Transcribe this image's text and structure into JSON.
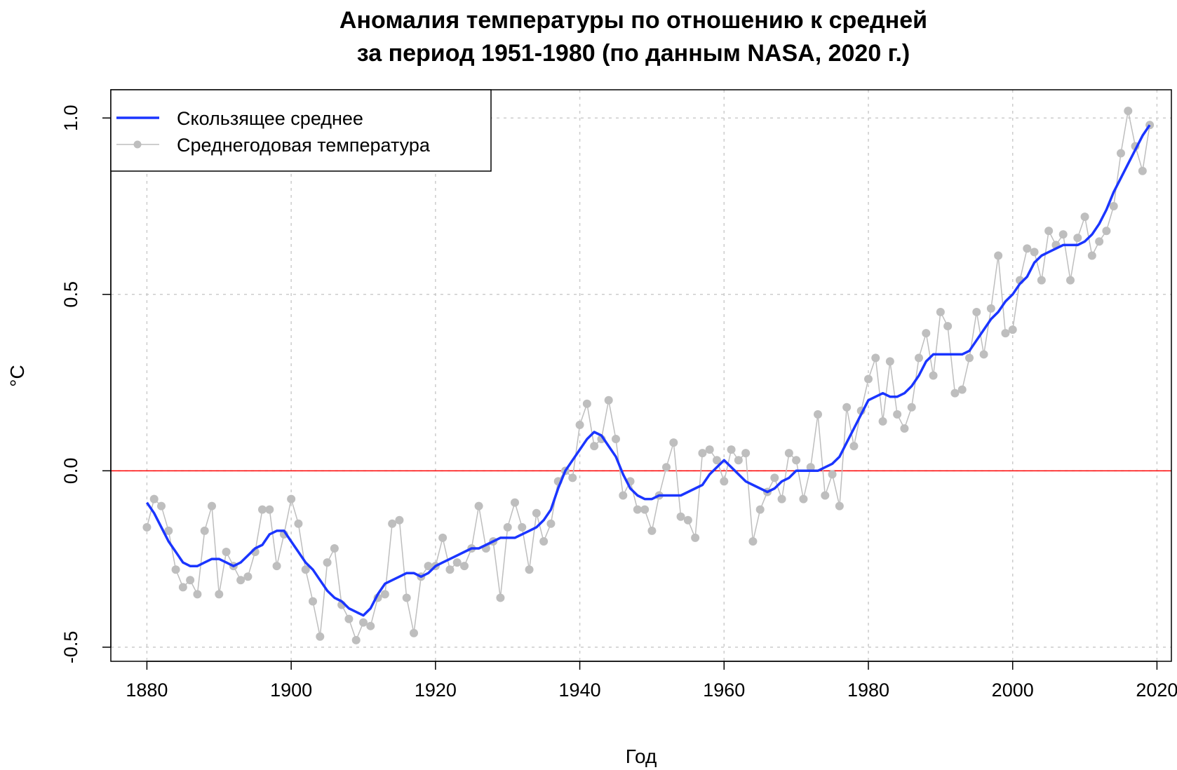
{
  "chart_data": {
    "type": "line",
    "title_line1": "Аномалия температуры по отношению к средней",
    "title_line2": "за период 1951-1980 (по данным NASA, 2020 г.)",
    "xlabel": "Год",
    "ylabel": "°C",
    "xlim": [
      1875,
      2022
    ],
    "ylim": [
      -0.54,
      1.08
    ],
    "xticks": [
      1880,
      1900,
      1920,
      1940,
      1960,
      1980,
      2000,
      2020
    ],
    "xtick_labels": [
      "1880",
      "1900",
      "1920",
      "1940",
      "1960",
      "1980",
      "2000",
      "2020"
    ],
    "yticks": [
      -0.5,
      0.0,
      0.5,
      1.0
    ],
    "ytick_labels": [
      "-0.5",
      "0.0",
      "0.5",
      "1.0"
    ],
    "grid": true,
    "reference_line": 0.0,
    "legend_position": "top-left",
    "legend": [
      {
        "label": "Скользящее среднее",
        "style": "line",
        "color": "#1a35ff"
      },
      {
        "label": "Среднегодовая температура",
        "style": "line-points",
        "color": "#bebebe"
      }
    ],
    "colors": {
      "moving_average": "#1a35ff",
      "annual": "#bebebe",
      "zero_line": "#ff0000",
      "grid": "#cccccc"
    },
    "series": [
      {
        "name": "Среднегодовая температура",
        "x": [
          1880,
          1881,
          1882,
          1883,
          1884,
          1885,
          1886,
          1887,
          1888,
          1889,
          1890,
          1891,
          1892,
          1893,
          1894,
          1895,
          1896,
          1897,
          1898,
          1899,
          1900,
          1901,
          1902,
          1903,
          1904,
          1905,
          1906,
          1907,
          1908,
          1909,
          1910,
          1911,
          1912,
          1913,
          1914,
          1915,
          1916,
          1917,
          1918,
          1919,
          1920,
          1921,
          1922,
          1923,
          1924,
          1925,
          1926,
          1927,
          1928,
          1929,
          1930,
          1931,
          1932,
          1933,
          1934,
          1935,
          1936,
          1937,
          1938,
          1939,
          1940,
          1941,
          1942,
          1943,
          1944,
          1945,
          1946,
          1947,
          1948,
          1949,
          1950,
          1951,
          1952,
          1953,
          1954,
          1955,
          1956,
          1957,
          1958,
          1959,
          1960,
          1961,
          1962,
          1963,
          1964,
          1965,
          1966,
          1967,
          1968,
          1969,
          1970,
          1971,
          1972,
          1973,
          1974,
          1975,
          1976,
          1977,
          1978,
          1979,
          1980,
          1981,
          1982,
          1983,
          1984,
          1985,
          1986,
          1987,
          1988,
          1989,
          1990,
          1991,
          1992,
          1993,
          1994,
          1995,
          1996,
          1997,
          1998,
          1999,
          2000,
          2001,
          2002,
          2003,
          2004,
          2005,
          2006,
          2007,
          2008,
          2009,
          2010,
          2011,
          2012,
          2013,
          2014,
          2015,
          2016,
          2017,
          2018,
          2019
        ],
        "y": [
          -0.16,
          -0.08,
          -0.1,
          -0.17,
          -0.28,
          -0.33,
          -0.31,
          -0.35,
          -0.17,
          -0.1,
          -0.35,
          -0.23,
          -0.27,
          -0.31,
          -0.3,
          -0.23,
          -0.11,
          -0.11,
          -0.27,
          -0.18,
          -0.08,
          -0.15,
          -0.28,
          -0.37,
          -0.47,
          -0.26,
          -0.22,
          -0.38,
          -0.42,
          -0.48,
          -0.43,
          -0.44,
          -0.36,
          -0.35,
          -0.15,
          -0.14,
          -0.36,
          -0.46,
          -0.3,
          -0.27,
          -0.27,
          -0.19,
          -0.28,
          -0.26,
          -0.27,
          -0.22,
          -0.1,
          -0.22,
          -0.2,
          -0.36,
          -0.16,
          -0.09,
          -0.16,
          -0.28,
          -0.12,
          -0.2,
          -0.15,
          -0.03,
          0.0,
          -0.02,
          0.13,
          0.19,
          0.07,
          0.09,
          0.2,
          0.09,
          -0.07,
          -0.03,
          -0.11,
          -0.11,
          -0.17,
          -0.07,
          0.01,
          0.08,
          -0.13,
          -0.14,
          -0.19,
          0.05,
          0.06,
          0.03,
          -0.03,
          0.06,
          0.03,
          0.05,
          -0.2,
          -0.11,
          -0.06,
          -0.02,
          -0.08,
          0.05,
          0.03,
          -0.08,
          0.01,
          0.16,
          -0.07,
          -0.01,
          -0.1,
          0.18,
          0.07,
          0.17,
          0.26,
          0.32,
          0.14,
          0.31,
          0.16,
          0.12,
          0.18,
          0.32,
          0.39,
          0.27,
          0.45,
          0.41,
          0.22,
          0.23,
          0.32,
          0.45,
          0.33,
          0.46,
          0.61,
          0.39,
          0.4,
          0.54,
          0.63,
          0.62,
          0.54,
          0.68,
          0.64,
          0.67,
          0.54,
          0.66,
          0.72,
          0.61,
          0.65,
          0.68,
          0.75,
          0.9,
          1.02,
          0.92,
          0.85,
          0.98
        ]
      },
      {
        "name": "Скользящее среднее",
        "x": [
          1880,
          1881,
          1882,
          1883,
          1884,
          1885,
          1886,
          1887,
          1888,
          1889,
          1890,
          1891,
          1892,
          1893,
          1894,
          1895,
          1896,
          1897,
          1898,
          1899,
          1900,
          1901,
          1902,
          1903,
          1904,
          1905,
          1906,
          1907,
          1908,
          1909,
          1910,
          1911,
          1912,
          1913,
          1914,
          1915,
          1916,
          1917,
          1918,
          1919,
          1920,
          1921,
          1922,
          1923,
          1924,
          1925,
          1926,
          1927,
          1928,
          1929,
          1930,
          1931,
          1932,
          1933,
          1934,
          1935,
          1936,
          1937,
          1938,
          1939,
          1940,
          1941,
          1942,
          1943,
          1944,
          1945,
          1946,
          1947,
          1948,
          1949,
          1950,
          1951,
          1952,
          1953,
          1954,
          1955,
          1956,
          1957,
          1958,
          1959,
          1960,
          1961,
          1962,
          1963,
          1964,
          1965,
          1966,
          1967,
          1968,
          1969,
          1970,
          1971,
          1972,
          1973,
          1974,
          1975,
          1976,
          1977,
          1978,
          1979,
          1980,
          1981,
          1982,
          1983,
          1984,
          1985,
          1986,
          1987,
          1988,
          1989,
          1990,
          1991,
          1992,
          1993,
          1994,
          1995,
          1996,
          1997,
          1998,
          1999,
          2000,
          2001,
          2002,
          2003,
          2004,
          2005,
          2006,
          2007,
          2008,
          2009,
          2010,
          2011,
          2012,
          2013,
          2014,
          2015,
          2016,
          2017,
          2018,
          2019
        ],
        "y": [
          -0.09,
          -0.12,
          -0.16,
          -0.2,
          -0.23,
          -0.26,
          -0.27,
          -0.27,
          -0.26,
          -0.25,
          -0.25,
          -0.26,
          -0.27,
          -0.26,
          -0.24,
          -0.22,
          -0.21,
          -0.18,
          -0.17,
          -0.17,
          -0.2,
          -0.23,
          -0.26,
          -0.28,
          -0.31,
          -0.34,
          -0.36,
          -0.37,
          -0.39,
          -0.4,
          -0.41,
          -0.39,
          -0.35,
          -0.32,
          -0.31,
          -0.3,
          -0.29,
          -0.29,
          -0.3,
          -0.29,
          -0.27,
          -0.26,
          -0.25,
          -0.24,
          -0.23,
          -0.22,
          -0.22,
          -0.21,
          -0.2,
          -0.19,
          -0.19,
          -0.19,
          -0.18,
          -0.17,
          -0.16,
          -0.14,
          -0.11,
          -0.05,
          0.0,
          0.03,
          0.06,
          0.09,
          0.11,
          0.1,
          0.07,
          0.04,
          -0.01,
          -0.05,
          -0.07,
          -0.08,
          -0.08,
          -0.07,
          -0.07,
          -0.07,
          -0.07,
          -0.06,
          -0.05,
          -0.04,
          -0.01,
          0.01,
          0.03,
          0.01,
          -0.01,
          -0.03,
          -0.04,
          -0.05,
          -0.06,
          -0.05,
          -0.03,
          -0.02,
          0.0,
          0.0,
          0.0,
          0.0,
          0.01,
          0.02,
          0.04,
          0.08,
          0.12,
          0.16,
          0.2,
          0.21,
          0.22,
          0.21,
          0.21,
          0.22,
          0.24,
          0.27,
          0.31,
          0.33,
          0.33,
          0.33,
          0.33,
          0.33,
          0.34,
          0.37,
          0.4,
          0.43,
          0.45,
          0.48,
          0.5,
          0.53,
          0.55,
          0.59,
          0.61,
          0.62,
          0.63,
          0.64,
          0.64,
          0.64,
          0.65,
          0.67,
          0.7,
          0.74,
          0.79,
          0.83,
          0.87,
          0.91,
          0.95,
          0.98
        ]
      }
    ]
  }
}
